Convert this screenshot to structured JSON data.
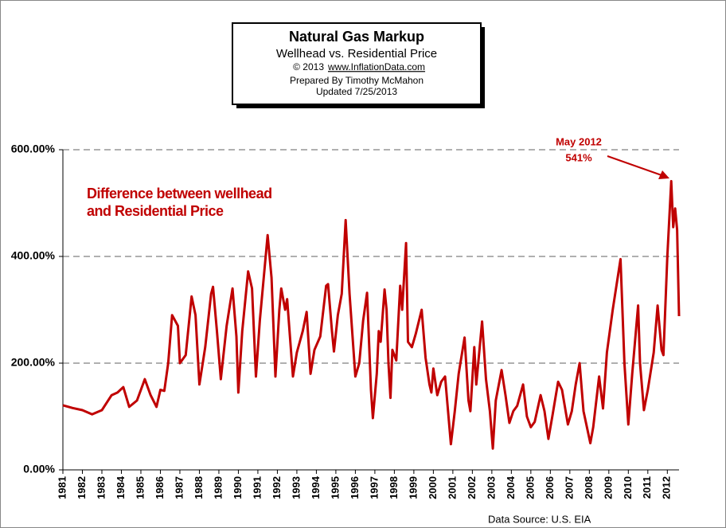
{
  "chart_data": {
    "type": "line",
    "title": "Natural Gas Markup",
    "subtitle": "Wellhead vs. Residential Price",
    "copyright": "© 2013",
    "url": "www.InflationData.com",
    "prepared_by": "Prepared  By Timothy McMahon",
    "updated": "Updated  7/25/2013",
    "source": "Data Source: U.S. EIA",
    "annotations": [
      "May 2012",
      "541%"
    ],
    "xlim": [
      1981,
      2012.6
    ],
    "xticks": [
      1981,
      1982,
      1983,
      1984,
      1985,
      1986,
      1987,
      1988,
      1989,
      1990,
      1991,
      1992,
      1993,
      1994,
      1995,
      1996,
      1997,
      1998,
      1999,
      2000,
      2001,
      2002,
      2003,
      2004,
      2005,
      2006,
      2007,
      2008,
      2009,
      2010,
      2011,
      2012
    ],
    "ylim": [
      0,
      600
    ],
    "yticks": [
      {
        "value": 0,
        "label": "0.00%"
      },
      {
        "value": 200,
        "label": "200.00%"
      },
      {
        "value": 400,
        "label": "400.00%"
      },
      {
        "value": 600,
        "label": "600.00%"
      }
    ],
    "grid": true,
    "x": [
      1981.0,
      1981.5,
      1982.0,
      1982.5,
      1983.0,
      1983.5,
      1983.8,
      1984.1,
      1984.4,
      1984.8,
      1985.2,
      1985.5,
      1985.8,
      1986.0,
      1986.2,
      1986.4,
      1986.6,
      1986.9,
      1987.0,
      1987.3,
      1987.6,
      1987.8,
      1988.0,
      1988.3,
      1988.6,
      1988.7,
      1988.9,
      1989.1,
      1989.4,
      1989.7,
      1989.9,
      1990.0,
      1990.2,
      1990.5,
      1990.7,
      1990.9,
      1991.1,
      1991.5,
      1991.7,
      1991.9,
      1992.1,
      1992.2,
      1992.4,
      1992.5,
      1992.8,
      1993.0,
      1993.3,
      1993.5,
      1993.7,
      1993.9,
      1994.2,
      1994.5,
      1994.6,
      1994.8,
      1994.9,
      1995.1,
      1995.3,
      1995.5,
      1995.7,
      1996.0,
      1996.2,
      1996.4,
      1996.6,
      1996.8,
      1996.9,
      1997.1,
      1997.2,
      1997.3,
      1997.5,
      1997.6,
      1997.7,
      1997.8,
      1997.9,
      1998.1,
      1998.3,
      1998.4,
      1998.6,
      1998.7,
      1998.9,
      1999.1,
      1999.4,
      1999.6,
      1999.8,
      1999.9,
      2000.0,
      2000.2,
      2000.4,
      2000.6,
      2000.9,
      2001.1,
      2001.3,
      2001.6,
      2001.8,
      2001.9,
      2002.1,
      2002.2,
      2002.5,
      2002.7,
      2002.9,
      2003.05,
      2003.2,
      2003.5,
      2003.7,
      2003.9,
      2004.1,
      2004.3,
      2004.6,
      2004.8,
      2005.0,
      2005.2,
      2005.5,
      2005.7,
      2005.9,
      2006.1,
      2006.4,
      2006.6,
      2006.9,
      2007.1,
      2007.3,
      2007.5,
      2007.7,
      2008.05,
      2008.2,
      2008.5,
      2008.7,
      2008.9,
      2009.2,
      2009.6,
      2009.8,
      2010.0,
      2010.2,
      2010.5,
      2010.6,
      2010.8,
      2011.0,
      2011.3,
      2011.5,
      2011.7,
      2011.8,
      2012.0,
      2012.2,
      2012.3,
      2012.4,
      2012.5,
      2012.6
    ],
    "series": [
      {
        "name": "Difference between wellhead and Residential Price",
        "color": "#c00000",
        "values": [
          121,
          116,
          112,
          104,
          112,
          140,
          145,
          155,
          118,
          130,
          170,
          140,
          118,
          150,
          148,
          200,
          290,
          270,
          200,
          215,
          325,
          290,
          160,
          230,
          330,
          343,
          260,
          170,
          270,
          340,
          250,
          145,
          260,
          372,
          340,
          175,
          280,
          440,
          360,
          175,
          300,
          340,
          300,
          320,
          175,
          220,
          260,
          296,
          180,
          225,
          250,
          345,
          348,
          260,
          222,
          290,
          330,
          468,
          330,
          175,
          200,
          280,
          332,
          150,
          97,
          180,
          260,
          240,
          338,
          300,
          200,
          135,
          225,
          205,
          345,
          300,
          425,
          240,
          230,
          255,
          300,
          210,
          160,
          145,
          190,
          140,
          165,
          175,
          48,
          110,
          180,
          248,
          130,
          110,
          230,
          160,
          278,
          170,
          110,
          40,
          130,
          187,
          140,
          88,
          110,
          120,
          160,
          100,
          80,
          90,
          140,
          110,
          58,
          100,
          165,
          150,
          85,
          110,
          160,
          200,
          110,
          50,
          80,
          175,
          115,
          220,
          300,
          395,
          200,
          85,
          180,
          308,
          200,
          112,
          150,
          220,
          308,
          225,
          215,
          400,
          541,
          455,
          490,
          450,
          288
        ]
      }
    ]
  }
}
